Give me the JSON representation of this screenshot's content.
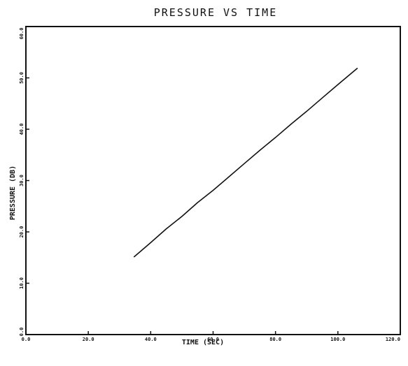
{
  "chart_data": {
    "type": "line",
    "title": "PRESSURE VS TIME",
    "xlabel": "TIME (SEC)",
    "ylabel": "PRESSURE (DB)",
    "xlim": [
      0,
      120
    ],
    "ylim": [
      0,
      60
    ],
    "x_ticks": [
      "0.0",
      "20.0",
      "40.0",
      "60.0",
      "80.0",
      "100.0",
      "120.0"
    ],
    "y_ticks": [
      "0.0",
      "10.0",
      "20.0",
      "30.0",
      "40.0",
      "50.0",
      "60.0"
    ],
    "grid": false,
    "series": [
      {
        "x": [
          34.6,
          40,
          45,
          50,
          55,
          60,
          65,
          70,
          75,
          80,
          85,
          90,
          95,
          100,
          106.3
        ],
        "y": [
          15.1,
          17.9,
          20.6,
          23.0,
          25.7,
          28.1,
          30.7,
          33.3,
          35.9,
          38.4,
          41.0,
          43.5,
          46.1,
          48.7,
          51.9
        ]
      }
    ],
    "line_color": "#111111"
  }
}
